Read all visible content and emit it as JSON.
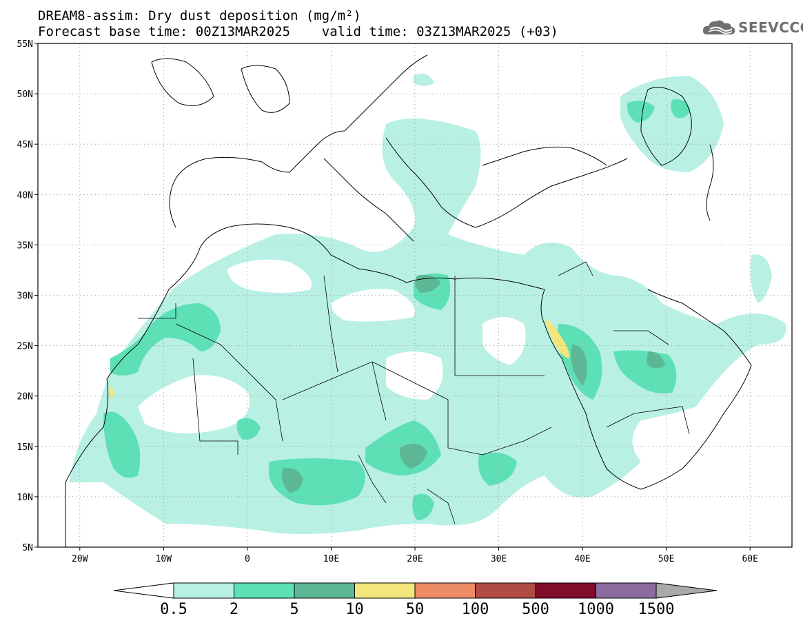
{
  "title": {
    "line1": "DREAM8-assim: Dry dust deposition (mg/m²)",
    "line2": "Forecast base time: 00Z13MAR2025    valid time: 03Z13MAR2025 (+03)"
  },
  "logo": {
    "text": "SEEVCCC",
    "icon": "cloud-logo-icon"
  },
  "map": {
    "lat_range": [
      5,
      55
    ],
    "lon_range": [
      -25,
      65
    ],
    "lat_ticks": [
      "55N",
      "50N",
      "45N",
      "40N",
      "35N",
      "30N",
      "25N",
      "20N",
      "15N",
      "10N",
      "5N"
    ],
    "lon_ticks": [
      "20W",
      "10W",
      "0",
      "10E",
      "20E",
      "30E",
      "40E",
      "50E",
      "60E"
    ],
    "gridlines": true
  },
  "legend": {
    "labels": [
      "0.5",
      "2",
      "5",
      "10",
      "50",
      "100",
      "500",
      "1000",
      "1500"
    ],
    "colors": [
      "#b8f0e4",
      "#5ee0b6",
      "#5cb894",
      "#f2e67c",
      "#ec8c64",
      "#b04c44",
      "#820c2c",
      "#8c6ca0"
    ],
    "under_color": "#ffffff",
    "over_color": "#a9a9a9"
  }
}
